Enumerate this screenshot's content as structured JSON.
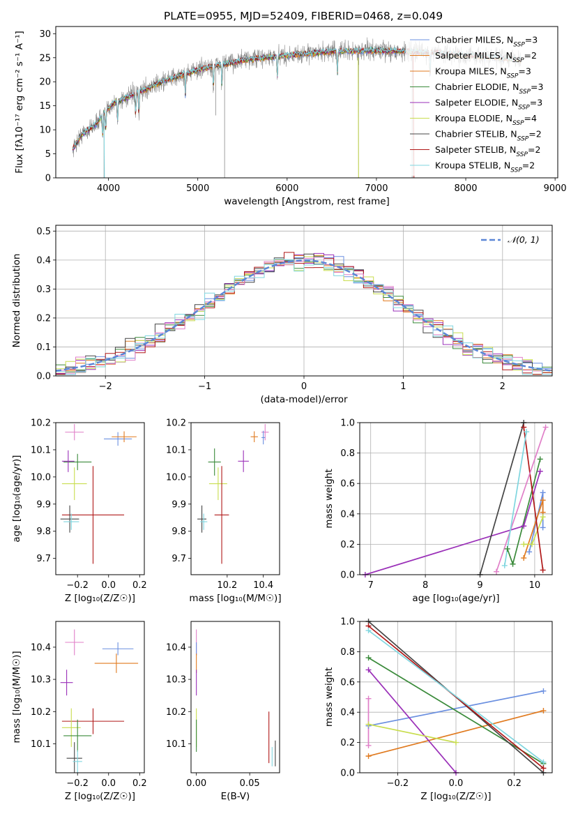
{
  "figure_title": "PLATE=0955, MJD=52409, FIBERID=0468, z=0.049",
  "palette": [
    "#6a8fe0",
    "#e07a1f",
    "#3a8a3a",
    "#9a2fb8",
    "#c8dd4e",
    "#444444",
    "#b01818",
    "#e07fc8",
    "#7fd6df",
    "#888888"
  ],
  "chart_data": [
    {
      "id": "spectrum",
      "type": "line",
      "xlabel": "wavelength [Angstrom, rest frame]",
      "ylabel": "Flux [fλ10⁻¹⁷ erg cm⁻² s⁻¹ A⁻¹]",
      "xlim": [
        3410,
        9030
      ],
      "ylim": [
        0,
        31.5
      ],
      "xticks": [
        4000,
        5000,
        6000,
        7000,
        8000,
        9000
      ],
      "yticks": [
        0,
        5,
        10,
        15,
        20,
        25,
        30
      ],
      "grid": false,
      "legend_position": "top-right",
      "data_range": [
        3600,
        8620
      ],
      "continuum_anchors": {
        "x": [
          3600,
          3700,
          3850,
          3950,
          4050,
          4300,
          4600,
          5000,
          5500,
          6000,
          6500,
          7000,
          7500,
          8000,
          8500,
          8620
        ],
        "y": [
          6,
          9,
          11,
          13.5,
          15.5,
          17.5,
          20,
          22.5,
          24.5,
          25.5,
          26.3,
          26.5,
          26.2,
          25.5,
          24.8,
          24.5
        ]
      },
      "series": [
        {
          "name": "Chabrier MILES",
          "nssp": "3",
          "color": "#6a8fe0"
        },
        {
          "name": "Salpeter MILES",
          "nssp": "2",
          "color": "#e07a1f"
        },
        {
          "name": "Kroupa MILES",
          "nssp": "3",
          "color": "#e07a1f"
        },
        {
          "name": "Chabrier ELODIE",
          "nssp": "3",
          "color": "#3a8a3a"
        },
        {
          "name": "Salpeter ELODIE",
          "nssp": "3",
          "color": "#9a2fb8"
        },
        {
          "name": "Kroupa ELODIE",
          "nssp": "4",
          "color": "#c8dd4e"
        },
        {
          "name": "Chabrier STELIB",
          "nssp": "2",
          "color": "#444444"
        },
        {
          "name": "Salpeter STELIB",
          "nssp": "2",
          "color": "#b01818"
        },
        {
          "name": "Kroupa STELIB",
          "nssp": "2",
          "color": "#7fd6df"
        }
      ]
    },
    {
      "id": "residuals",
      "type": "area",
      "xlabel": "(data-model)/error",
      "ylabel": "Normed distribution",
      "xlim": [
        -2.5,
        2.5
      ],
      "ylim": [
        0,
        0.52
      ],
      "xticks": [
        -2,
        -1,
        0,
        1,
        2
      ],
      "yticks": [
        0.0,
        0.1,
        0.2,
        0.3,
        0.4,
        0.5
      ],
      "grid": true,
      "legend_position": "top-right",
      "legend_label": "𝒩(0, 1)",
      "bin_width": 0.1,
      "series_colors": [
        "#6a8fe0",
        "#e07a1f",
        "#3a8a3a",
        "#9a2fb8",
        "#c8dd4e",
        "#444444",
        "#b01818",
        "#e07fc8",
        "#7fd6df"
      ]
    },
    {
      "id": "age_vs_Z",
      "type": "scatter",
      "xlabel": "Z [log₁₀(Z/Z☉)]",
      "ylabel": "age  [log₁₀(age/yr)]",
      "xlim": [
        -0.34,
        0.23
      ],
      "ylim": [
        9.64,
        10.2
      ],
      "xticks": [
        -0.2,
        0.0,
        0.2
      ],
      "yticks": [
        9.7,
        9.8,
        9.9,
        10.0,
        10.1,
        10.2
      ],
      "grid": false,
      "points": [
        {
          "x": -0.22,
          "y": 10.165,
          "xerr": 0.06,
          "yerr": 0.03,
          "color": "#e07fc8"
        },
        {
          "x": 0.06,
          "y": 10.14,
          "xerr": 0.09,
          "yerr": 0.025,
          "color": "#6a8fe0"
        },
        {
          "x": 0.1,
          "y": 10.148,
          "xerr": 0.08,
          "yerr": 0.02,
          "color": "#e07a1f"
        },
        {
          "x": -0.2,
          "y": 10.055,
          "xerr": 0.09,
          "yerr": 0.03,
          "color": "#3a8a3a"
        },
        {
          "x": -0.26,
          "y": 10.058,
          "xerr": 0.04,
          "yerr": 0.04,
          "color": "#9a2fb8"
        },
        {
          "x": -0.22,
          "y": 9.975,
          "xerr": 0.08,
          "yerr": 0.06,
          "color": "#c8dd4e"
        },
        {
          "x": -0.1,
          "y": 9.86,
          "xerr": 0.2,
          "yerr": 0.18,
          "color": "#b01818"
        },
        {
          "x": -0.25,
          "y": 9.845,
          "xerr": 0.06,
          "yerr": 0.05,
          "color": "#444444"
        },
        {
          "x": -0.24,
          "y": 9.835,
          "xerr": 0.05,
          "yerr": 0.03,
          "color": "#7fd6df"
        }
      ]
    },
    {
      "id": "age_vs_mass",
      "type": "scatter",
      "xlabel": "mass [log₁₀(M/M☉)]",
      "ylabel": "",
      "xlim": [
        10.0,
        10.49
      ],
      "ylim": [
        9.64,
        10.2
      ],
      "xticks": [
        10.2,
        10.4
      ],
      "yticks": [
        9.7,
        9.8,
        9.9,
        10.0,
        10.1,
        10.2
      ],
      "grid": false,
      "points": [
        {
          "x": 10.41,
          "y": 10.165,
          "xerr": 0.02,
          "yerr": 0.03,
          "color": "#e07fc8"
        },
        {
          "x": 10.4,
          "y": 10.145,
          "xerr": 0.01,
          "yerr": 0.025,
          "color": "#6a8fe0"
        },
        {
          "x": 10.35,
          "y": 10.148,
          "xerr": 0.02,
          "yerr": 0.02,
          "color": "#e07a1f"
        },
        {
          "x": 10.13,
          "y": 10.055,
          "xerr": 0.035,
          "yerr": 0.05,
          "color": "#3a8a3a"
        },
        {
          "x": 10.29,
          "y": 10.058,
          "xerr": 0.03,
          "yerr": 0.04,
          "color": "#9a2fb8"
        },
        {
          "x": 10.15,
          "y": 9.975,
          "xerr": 0.05,
          "yerr": 0.06,
          "color": "#c8dd4e"
        },
        {
          "x": 10.17,
          "y": 9.86,
          "xerr": 0.04,
          "yerr": 0.18,
          "color": "#b01818"
        },
        {
          "x": 10.06,
          "y": 9.845,
          "xerr": 0.025,
          "yerr": 0.05,
          "color": "#444444"
        },
        {
          "x": 10.07,
          "y": 9.835,
          "xerr": 0.02,
          "yerr": 0.03,
          "color": "#7fd6df"
        }
      ]
    },
    {
      "id": "weight_vs_age",
      "type": "line",
      "xlabel": "age  [log₁₀(age/yr)]",
      "ylabel": "mass weight",
      "xlim": [
        6.8,
        10.32
      ],
      "ylim": [
        0,
        1
      ],
      "xticks": [
        7,
        8,
        9,
        10
      ],
      "yticks": [
        0.0,
        0.2,
        0.4,
        0.6,
        0.8,
        1.0
      ],
      "grid": true,
      "series": [
        {
          "color": "#6a8fe0",
          "x": [
            9.9,
            10.15,
            10.15
          ],
          "y": [
            0.15,
            0.54,
            0.31
          ]
        },
        {
          "color": "#e07a1f",
          "x": [
            9.8,
            10.15,
            10.15
          ],
          "y": [
            0.11,
            0.49,
            0.41
          ]
        },
        {
          "color": "#3a8a3a",
          "x": [
            9.5,
            9.6,
            10.1
          ],
          "y": [
            0.17,
            0.07,
            0.76
          ]
        },
        {
          "color": "#9a2fb8",
          "x": [
            6.9,
            9.8,
            10.1
          ],
          "y": [
            0.0,
            0.32,
            0.68
          ]
        },
        {
          "color": "#c8dd4e",
          "x": [
            9.8,
            9.95,
            10.15
          ],
          "y": [
            0.2,
            0.2,
            0.38
          ]
        },
        {
          "color": "#444444",
          "x": [
            9.0,
            9.8
          ],
          "y": [
            0.0,
            1.0
          ]
        },
        {
          "color": "#b01818",
          "x": [
            9.8,
            10.15
          ],
          "y": [
            0.97,
            0.03
          ]
        },
        {
          "color": "#e07fc8",
          "x": [
            9.3,
            10.2
          ],
          "y": [
            0.02,
            0.97
          ]
        },
        {
          "color": "#7fd6df",
          "x": [
            9.45,
            9.85
          ],
          "y": [
            0.06,
            0.94
          ]
        }
      ]
    },
    {
      "id": "mass_vs_Z",
      "type": "scatter",
      "xlabel": "Z [log₁₀(Z/Z☉)]",
      "ylabel": "mass [log₁₀(M/M☉)]",
      "xlim": [
        -0.34,
        0.23
      ],
      "ylim": [
        10.01,
        10.48
      ],
      "xticks": [
        -0.2,
        0.0,
        0.2
      ],
      "yticks": [
        10.1,
        10.2,
        10.3,
        10.4
      ],
      "grid": false,
      "points": [
        {
          "x": -0.22,
          "y": 10.415,
          "xerr": 0.06,
          "yerr": 0.04,
          "color": "#e07fc8"
        },
        {
          "x": 0.06,
          "y": 10.395,
          "xerr": 0.1,
          "yerr": 0.02,
          "color": "#6a8fe0"
        },
        {
          "x": 0.05,
          "y": 10.35,
          "xerr": 0.14,
          "yerr": 0.03,
          "color": "#e07a1f"
        },
        {
          "x": -0.27,
          "y": 10.29,
          "xerr": 0.04,
          "yerr": 0.04,
          "color": "#9a2fb8"
        },
        {
          "x": -0.1,
          "y": 10.17,
          "xerr": 0.2,
          "yerr": 0.04,
          "color": "#b01818"
        },
        {
          "x": -0.24,
          "y": 10.15,
          "xerr": 0.06,
          "yerr": 0.06,
          "color": "#c8dd4e"
        },
        {
          "x": -0.2,
          "y": 10.125,
          "xerr": 0.09,
          "yerr": 0.05,
          "color": "#3a8a3a"
        },
        {
          "x": -0.22,
          "y": 10.055,
          "xerr": 0.05,
          "yerr": 0.05,
          "color": "#444444"
        },
        {
          "x": -0.2,
          "y": 10.045,
          "xerr": 0.03,
          "yerr": 0.035,
          "color": "#7fd6df"
        }
      ]
    },
    {
      "id": "mass_vs_ebv",
      "type": "scatter",
      "xlabel": "E(B-V)",
      "ylabel": "",
      "xlim": [
        -0.005,
        0.078
      ],
      "ylim": [
        10.01,
        10.48
      ],
      "xticks": [
        0.0,
        0.05
      ],
      "yticks": [
        10.1,
        10.2,
        10.3,
        10.4
      ],
      "grid": false,
      "points": [
        {
          "x": 0.0,
          "y": 10.415,
          "yerr": 0.04,
          "color": "#e07fc8"
        },
        {
          "x": 0.0,
          "y": 10.395,
          "yerr": 0.02,
          "color": "#6a8fe0"
        },
        {
          "x": 0.0,
          "y": 10.35,
          "yerr": 0.03,
          "color": "#e07a1f"
        },
        {
          "x": 0.0,
          "y": 10.29,
          "yerr": 0.04,
          "color": "#9a2fb8"
        },
        {
          "x": 0.0,
          "y": 10.15,
          "yerr": 0.06,
          "color": "#c8dd4e"
        },
        {
          "x": 0.0,
          "y": 10.125,
          "yerr": 0.05,
          "color": "#3a8a3a"
        },
        {
          "x": 0.068,
          "y": 10.12,
          "yerr": 0.08,
          "color": "#b01818"
        },
        {
          "x": 0.074,
          "y": 10.07,
          "yerr": 0.04,
          "color": "#444444"
        },
        {
          "x": 0.071,
          "y": 10.06,
          "yerr": 0.03,
          "color": "#7fd6df"
        }
      ]
    },
    {
      "id": "weight_vs_Z",
      "type": "line",
      "xlabel": "Z [log₁₀(Z/Z☉)]",
      "ylabel": "mass weight",
      "xlim": [
        -0.33,
        0.33
      ],
      "ylim": [
        0,
        1
      ],
      "xticks": [
        -0.2,
        0.0,
        0.2
      ],
      "yticks": [
        0.0,
        0.2,
        0.4,
        0.6,
        0.8,
        1.0
      ],
      "grid": true,
      "series": [
        {
          "color": "#6a8fe0",
          "x": [
            -0.3,
            0.3
          ],
          "y": [
            0.31,
            0.54
          ]
        },
        {
          "color": "#e07a1f",
          "x": [
            -0.3,
            0.3
          ],
          "y": [
            0.11,
            0.41
          ]
        },
        {
          "color": "#3a8a3a",
          "x": [
            -0.3,
            0.3
          ],
          "y": [
            0.76,
            0.06
          ]
        },
        {
          "color": "#9a2fb8",
          "x": [
            -0.3,
            0.0
          ],
          "y": [
            0.68,
            0.0
          ]
        },
        {
          "color": "#c8dd4e",
          "x": [
            -0.3,
            0.0
          ],
          "y": [
            0.32,
            0.2
          ]
        },
        {
          "color": "#444444",
          "x": [
            -0.3,
            0.3
          ],
          "y": [
            1.0,
            0.0
          ]
        },
        {
          "color": "#b01818",
          "x": [
            -0.3,
            0.3
          ],
          "y": [
            0.97,
            0.03
          ]
        },
        {
          "color": "#7fd6df",
          "x": [
            -0.3,
            0.3
          ],
          "y": [
            0.94,
            0.07
          ]
        },
        {
          "color": "#e07fc8",
          "x": [
            -0.3,
            -0.3
          ],
          "y": [
            0.49,
            0.18
          ]
        }
      ]
    }
  ]
}
